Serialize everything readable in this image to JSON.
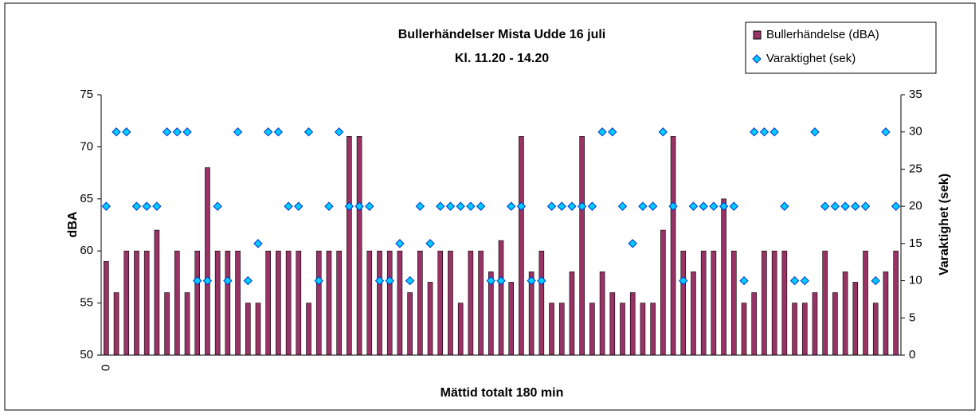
{
  "chart_data": {
    "type": "bar",
    "title": "Bullerhändelser Mista Udde 16 juli",
    "subtitle": "Kl. 11.20 - 14.20",
    "x_label": "Mättid totalt 180 min",
    "y_label": "dBA",
    "y2_label": "Varaktighet (sek)",
    "categories": [
      "0",
      null,
      null,
      null,
      null,
      null,
      null,
      null,
      null,
      null,
      null,
      null,
      null,
      null,
      null,
      null,
      null,
      null,
      null,
      null,
      null,
      null,
      null,
      null,
      null,
      null,
      null,
      null,
      null,
      null,
      null,
      null,
      null,
      null,
      null,
      null,
      null,
      null,
      null,
      null,
      null,
      null,
      null,
      null,
      null,
      null,
      null,
      null,
      null,
      null,
      null,
      null,
      null,
      null,
      null,
      null,
      null,
      null,
      null,
      null,
      null,
      null,
      null,
      null,
      null,
      null,
      null,
      null,
      null,
      null,
      null,
      null,
      null,
      null,
      null,
      null,
      null,
      null,
      null
    ],
    "series": [
      {
        "name": "Bullerhändelse (dBA)",
        "type": "bar",
        "color": "#993366",
        "values": [
          59,
          56,
          60,
          60,
          60,
          62,
          56,
          60,
          56,
          60,
          68,
          60,
          60,
          60,
          55,
          55,
          60,
          60,
          60,
          60,
          55,
          60,
          60,
          60,
          71,
          71,
          60,
          60,
          60,
          60,
          56,
          60,
          57,
          60,
          60,
          55,
          60,
          60,
          58,
          61,
          57,
          71,
          58,
          60,
          55,
          55,
          58,
          71,
          55,
          58,
          56,
          55,
          56,
          55,
          55,
          62,
          71,
          60,
          58,
          60,
          60,
          65,
          60,
          55,
          56,
          60,
          60,
          60,
          55,
          55,
          56,
          60,
          56,
          58,
          57,
          60,
          55,
          58,
          60
        ]
      },
      {
        "name": "Varaktighet (sek)",
        "type": "scatter",
        "axis": "y2",
        "color": "#00CCFF",
        "values": [
          20,
          30,
          30,
          20,
          20,
          20,
          30,
          30,
          30,
          10,
          10,
          20,
          10,
          30,
          10,
          15,
          30,
          30,
          20,
          20,
          30,
          10,
          20,
          30,
          20,
          20,
          20,
          10,
          10,
          15,
          10,
          20,
          15,
          20,
          20,
          20,
          20,
          20,
          10,
          10,
          20,
          20,
          10,
          10,
          20,
          20,
          20,
          20,
          20,
          30,
          30,
          20,
          15,
          20,
          20,
          30,
          20,
          10,
          20,
          20,
          20,
          20,
          20,
          10,
          30,
          30,
          30,
          20,
          10,
          10,
          30,
          20,
          20,
          20,
          20,
          20,
          10,
          30,
          20
        ]
      }
    ],
    "ylim": [
      50,
      75
    ],
    "yticks": [
      50,
      55,
      60,
      65,
      70,
      75
    ],
    "y2lim": [
      0,
      35
    ],
    "y2ticks": [
      0,
      5,
      10,
      15,
      20,
      25,
      30,
      35
    ],
    "grid": false,
    "legend": "top-right"
  }
}
